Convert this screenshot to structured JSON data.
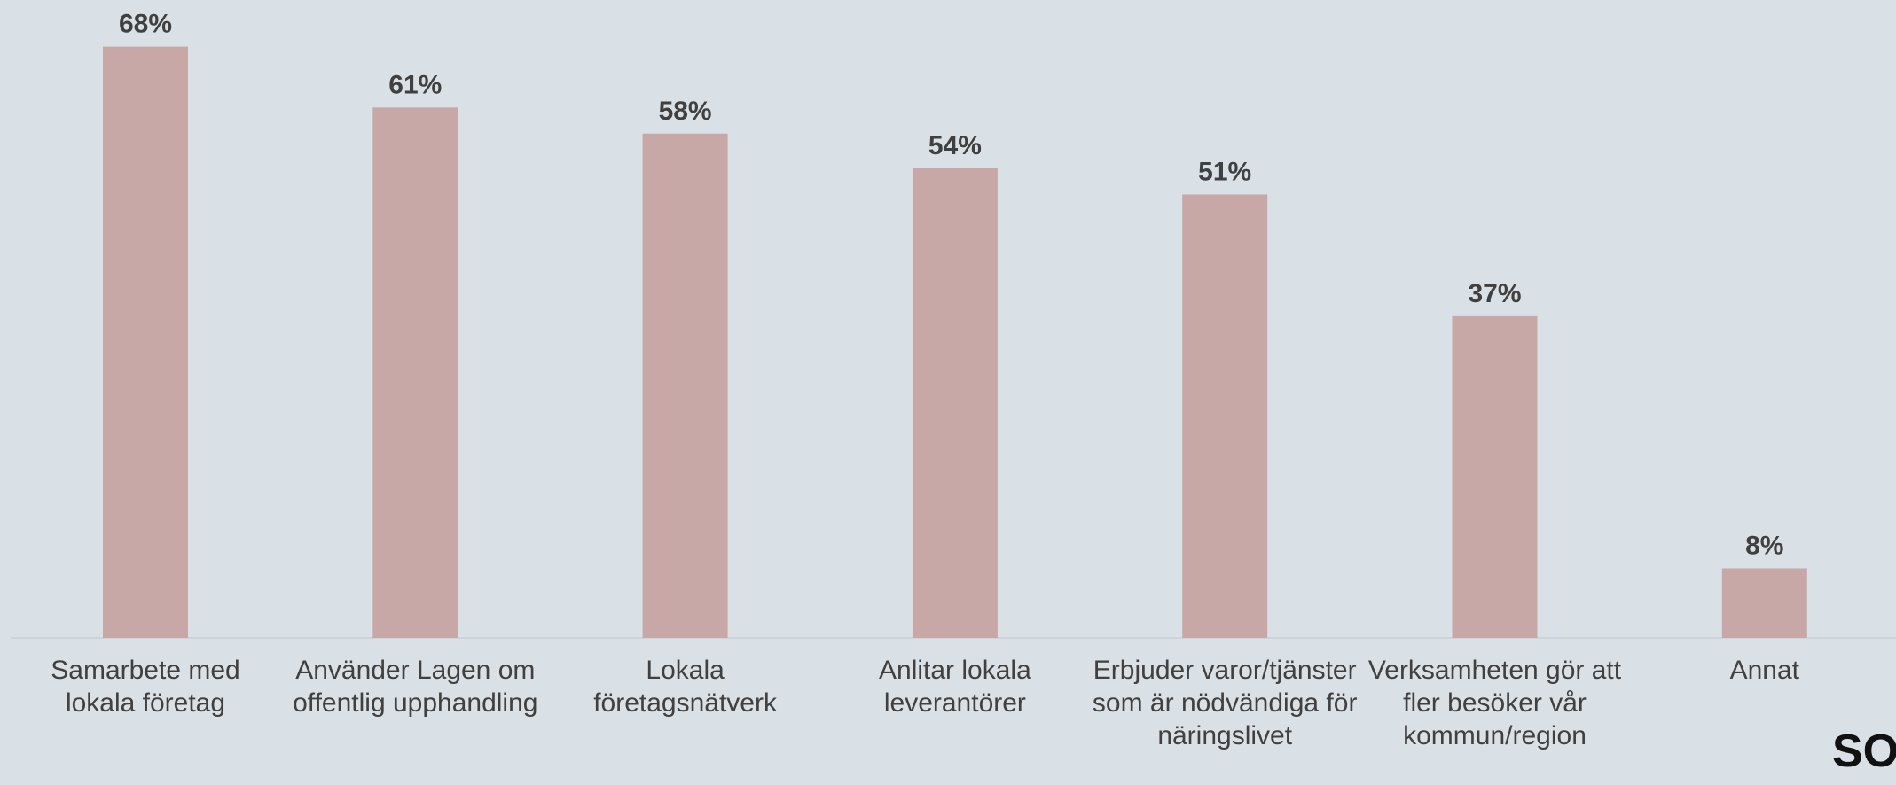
{
  "chart_data": {
    "type": "bar",
    "categories": [
      "Samarbete med lokala företag",
      "Använder Lagen om offentlig upphandling",
      "Lokala företagsnätverk",
      "Anlitar lokala leverantörer",
      "Erbjuder varor/tjänster som är nödvändiga för näringslivet",
      "Verksamheten gör att fler besöker vår kommun/region",
      "Annat"
    ],
    "values": [
      68,
      61,
      58,
      54,
      51,
      37,
      8
    ],
    "value_labels": [
      "68%",
      "61%",
      "58%",
      "54%",
      "51%",
      "37%",
      "8%"
    ],
    "color": "#c8a7a7",
    "ylim": [
      0,
      70
    ],
    "grid": false
  },
  "logo": "SO"
}
